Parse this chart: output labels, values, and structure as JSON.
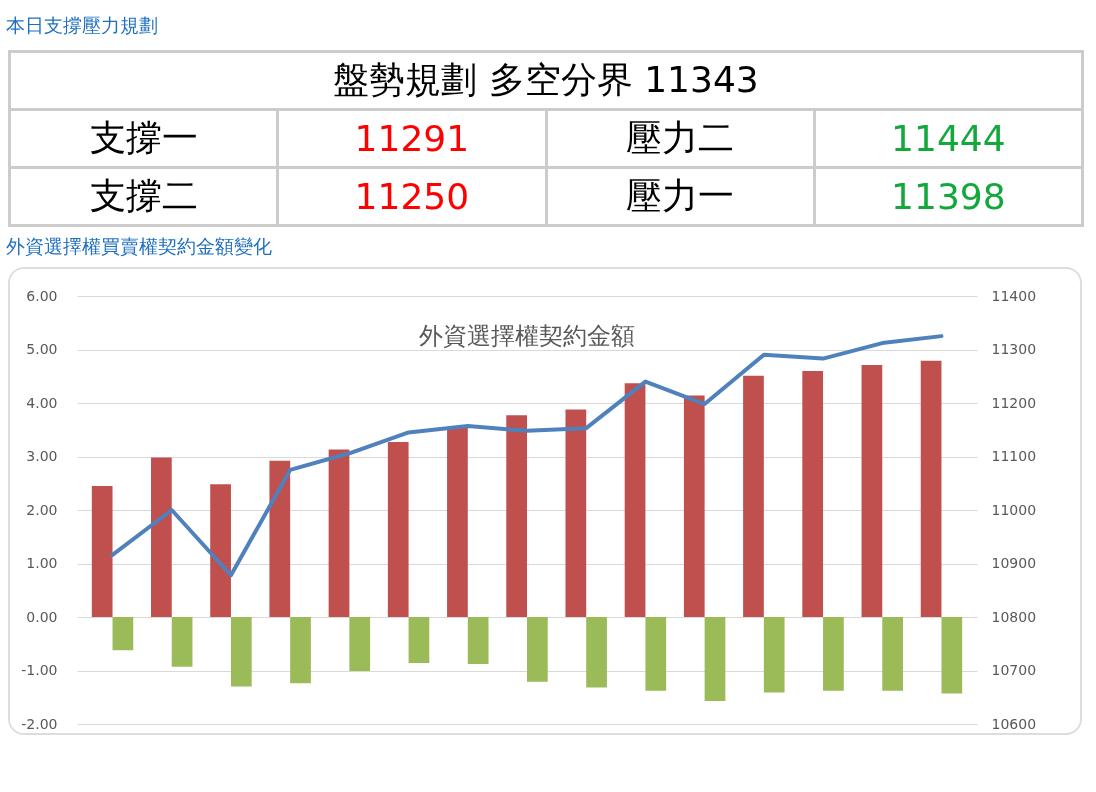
{
  "chart_data": [
    {
      "type": "other",
      "title": "本日支撐壓力規劃",
      "annotations": [
        "盤勢規劃 多空分界 11343",
        "支撐一",
        "11291",
        "壓力二",
        "11444",
        "支撐二",
        "11250",
        "壓力一",
        "11398"
      ]
    },
    {
      "type": "bar",
      "title": "外資選擇權契約金額",
      "annotations": [
        "外資選擇權買賣權契約金額變化"
      ],
      "categories": [
        null,
        null,
        null,
        null,
        null,
        null,
        null,
        null,
        null,
        null,
        null,
        null,
        null,
        null,
        null
      ],
      "series": [
        {
          "color": "#c0504d",
          "values": [
            2.45,
            2.98,
            2.48,
            2.92,
            3.13,
            3.27,
            3.55,
            3.77,
            3.88,
            4.37,
            4.14,
            4.51,
            4.6,
            4.71,
            4.79
          ]
        },
        {
          "color": "#9bbb59",
          "values": [
            -0.62,
            -0.93,
            -1.3,
            -1.24,
            -1.01,
            -0.86,
            -0.88,
            -1.21,
            -1.32,
            -1.38,
            -1.57,
            -1.41,
            -1.38,
            -1.38,
            -1.43
          ]
        },
        {
          "type": "line",
          "axis": "y2",
          "color": "#4f81bd",
          "values": [
            10916,
            11000,
            10878,
            11075,
            11106,
            11145,
            11157,
            11148,
            11153,
            11240,
            11198,
            11290,
            11283,
            11312,
            11325
          ]
        }
      ],
      "ylim": [
        -2,
        6
      ],
      "yticks": [
        {
          "value": -2,
          "label": "-2.00"
        },
        {
          "value": -1,
          "label": "-1.00"
        },
        {
          "value": 0,
          "label": "0.00"
        },
        {
          "value": 1,
          "label": "1.00"
        },
        {
          "value": 2,
          "label": "2.00"
        },
        {
          "value": 3,
          "label": "3.00"
        },
        {
          "value": 4,
          "label": "4.00"
        },
        {
          "value": 5,
          "label": "5.00"
        },
        {
          "value": 6,
          "label": "6.00"
        }
      ],
      "y2lim": [
        10600,
        11400
      ],
      "y2ticks": [
        10600,
        10700,
        10800,
        10900,
        11000,
        11100,
        11200,
        11300,
        11400
      ],
      "grid": "y",
      "tick_labels": "y"
    }
  ]
}
